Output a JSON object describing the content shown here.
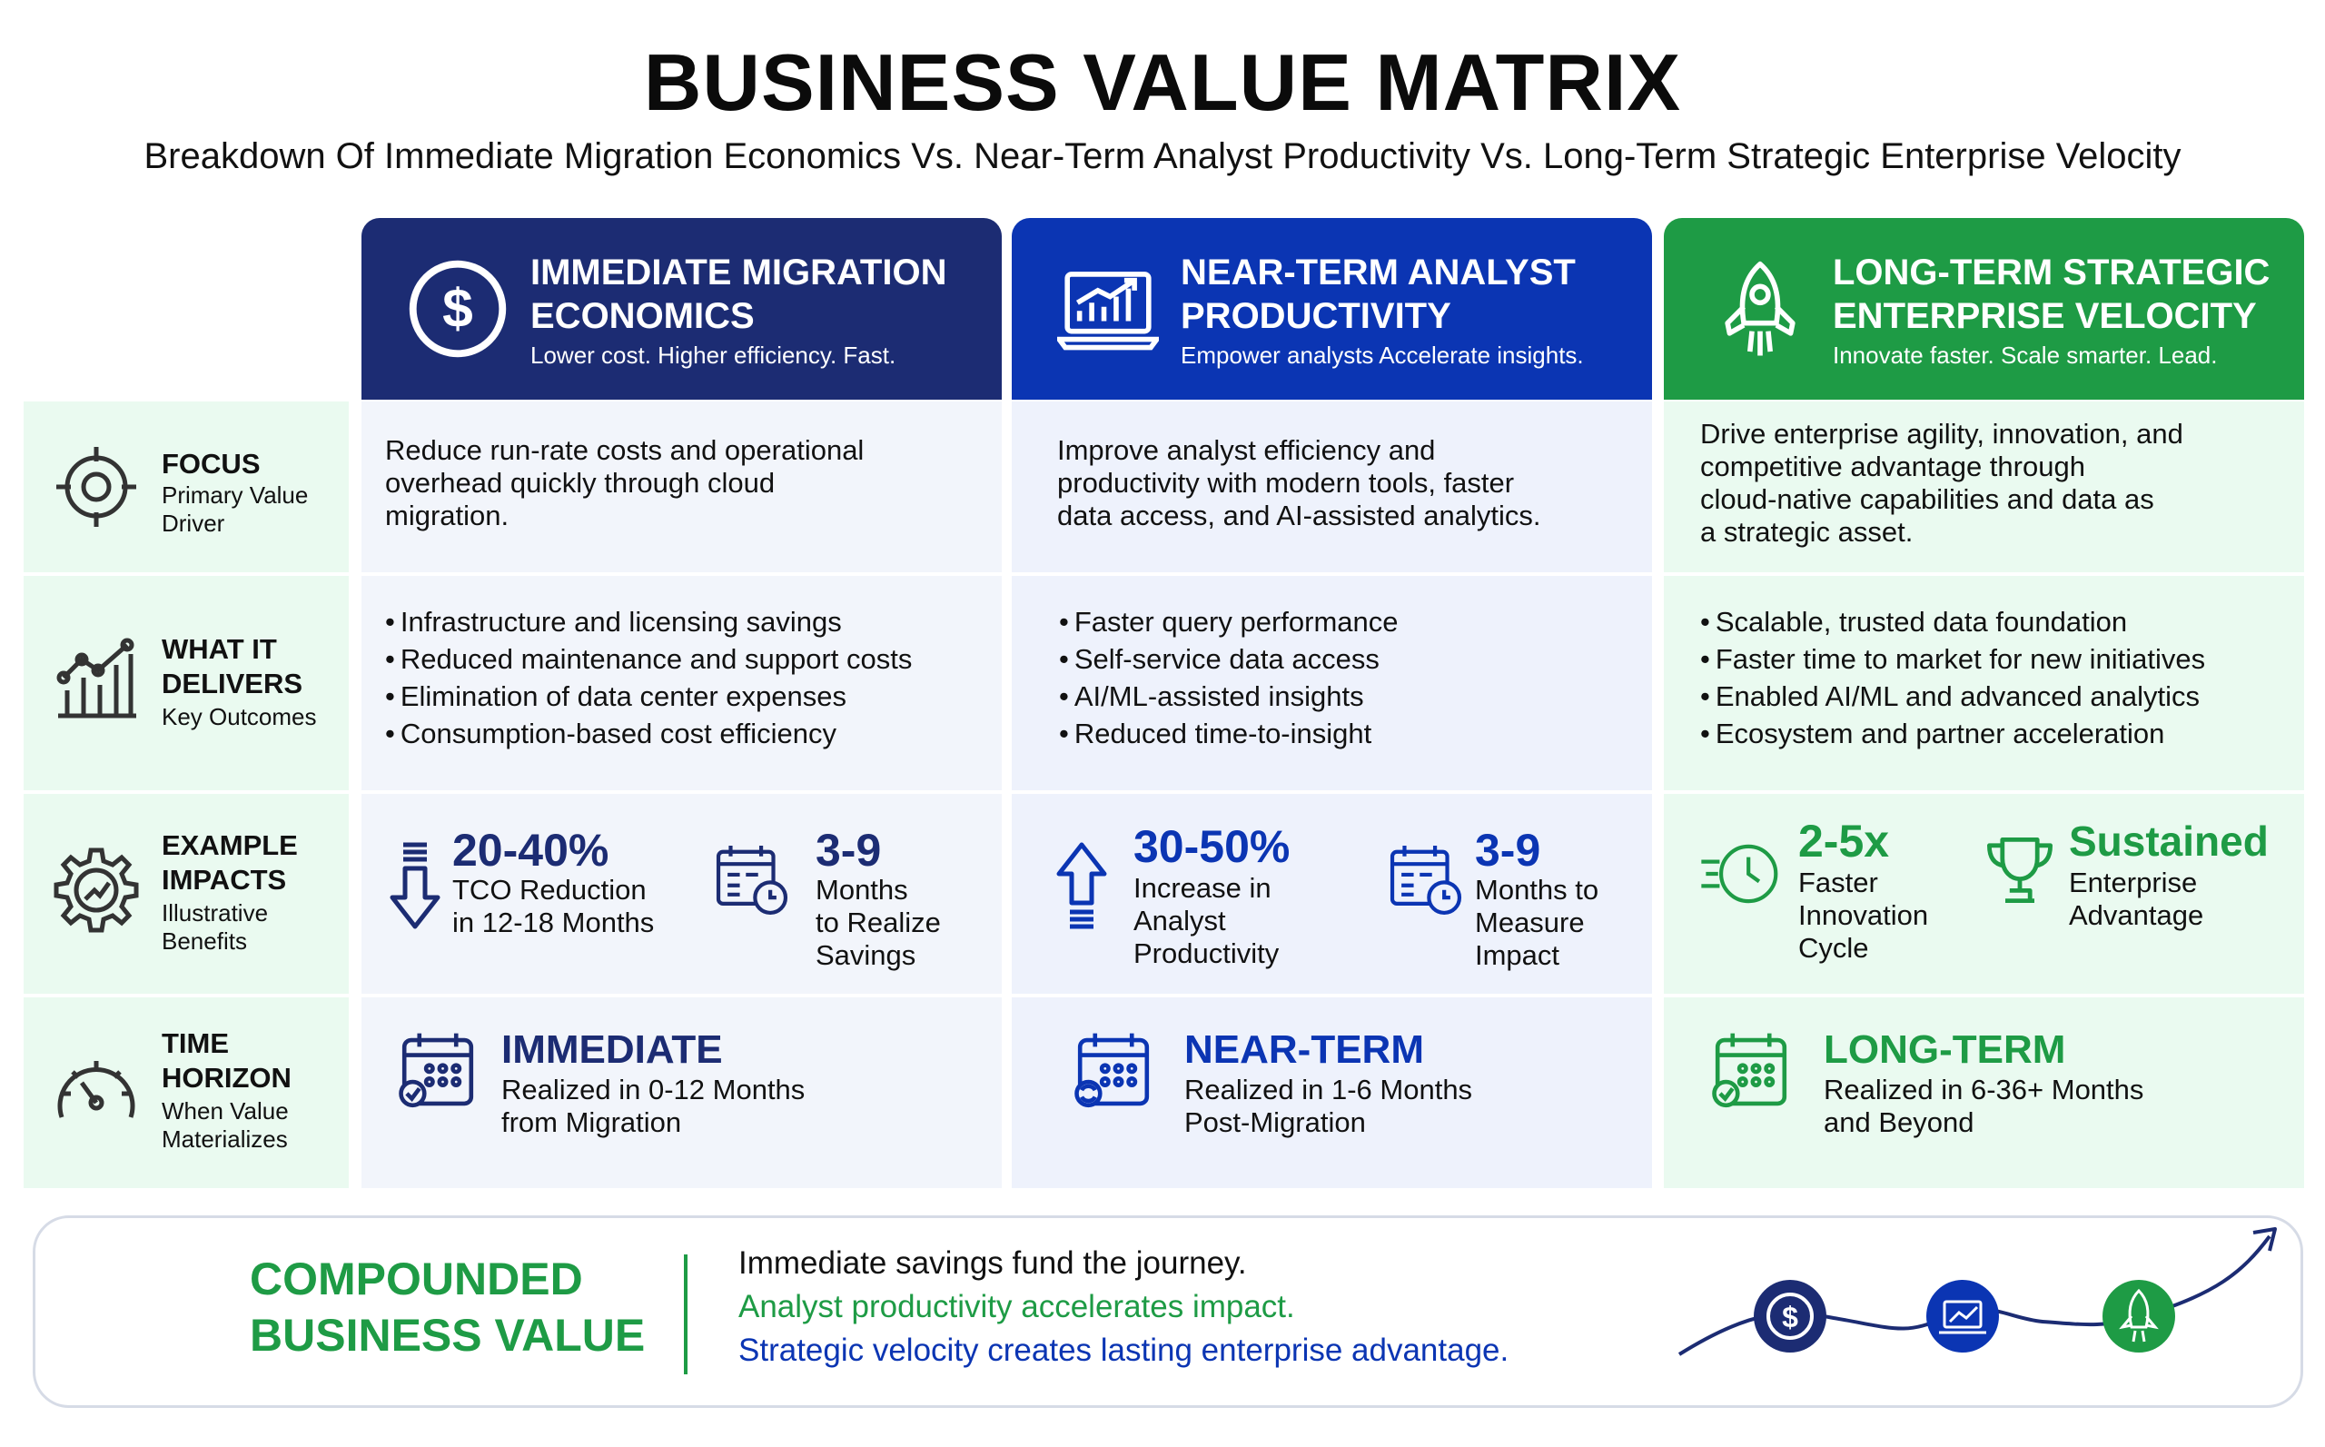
{
  "title": "BUSINESS VALUE MATRIX",
  "subtitle": "Breakdown Of Immediate Migration Economics Vs. Near-Term Analyst Productivity Vs. Long-Term Strategic Enterprise Velocity",
  "colors": {
    "navy": "#1c2c73",
    "blue": "#0b35b3",
    "green": "#1e9b45"
  },
  "columns": [
    {
      "title_line1": "IMMEDIATE MIGRATION",
      "title_line2": "ECONOMICS",
      "tagline": "Lower cost. Higher efficiency. Fast.",
      "icon": "dollar-icon"
    },
    {
      "title_line1": "NEAR-TERM ANALYST",
      "title_line2": "PRODUCTIVITY",
      "tagline": "Empower analysts Accelerate insights.",
      "icon": "laptop-chart-icon"
    },
    {
      "title_line1": "LONG-TERM STRATEGIC",
      "title_line2": "ENTERPRISE VELOCITY",
      "tagline": "Innovate faster. Scale smarter. Lead.",
      "icon": "rocket-icon"
    }
  ],
  "rows": [
    {
      "title_line1": "FOCUS",
      "title_line2": "",
      "sub_line1": "Primary Value",
      "sub_line2": "Driver",
      "icon": "target-icon"
    },
    {
      "title_line1": "WHAT IT",
      "title_line2": "DELIVERS",
      "sub_line1": "Key Outcomes",
      "sub_line2": "",
      "icon": "bar-chart-icon"
    },
    {
      "title_line1": "EXAMPLE",
      "title_line2": "IMPACTS",
      "sub_line1": "Illustrative",
      "sub_line2": "Benefits",
      "icon": "gear-chart-icon"
    },
    {
      "title_line1": "TIME",
      "title_line2": "HORIZON",
      "sub_line1": "When Value",
      "sub_line2": "Materializes",
      "icon": "gauge-icon"
    }
  ],
  "focus": [
    [
      "Reduce run-rate costs and operational",
      "overhead quickly through cloud",
      "migration."
    ],
    [
      "Improve analyst efficiency and",
      "productivity with modern tools, faster",
      "data access, and AI-assisted analytics."
    ],
    [
      "Drive enterprise agility, innovation, and",
      "competitive advantage through",
      "cloud-native capabilities and data as",
      "a strategic asset."
    ]
  ],
  "delivers": [
    [
      "Infrastructure and licensing savings",
      "Reduced maintenance and support costs",
      "Elimination of data center expenses",
      "Consumption-based cost efficiency"
    ],
    [
      "Faster query performance",
      "Self-service data access",
      "AI/ML-assisted insights",
      "Reduced time-to-insight"
    ],
    [
      "Scalable, trusted data foundation",
      "Faster time to market for new initiatives",
      "Enabled AI/ML and advanced analytics",
      "Ecosystem and partner acceleration"
    ]
  ],
  "impacts": [
    [
      {
        "value": "20-40%",
        "lines": [
          "TCO Reduction",
          "in 12-18 Months"
        ],
        "icon": "arrow-down-icon"
      },
      {
        "value": "3-9",
        "lines": [
          "Months",
          "to Realize",
          "Savings"
        ],
        "icon": "calendar-clock-icon"
      }
    ],
    [
      {
        "value": "30-50%",
        "lines": [
          "Increase in",
          "Analyst",
          "Productivity"
        ],
        "icon": "arrow-up-icon"
      },
      {
        "value": "3-9",
        "lines": [
          "Months to",
          "Measure",
          "Impact"
        ],
        "icon": "calendar-clock-icon"
      }
    ],
    [
      {
        "value": "2-5x",
        "lines": [
          "Faster",
          "Innovation",
          "Cycle"
        ],
        "icon": "clock-speed-icon"
      },
      {
        "value": "Sustained",
        "lines": [
          "Enterprise",
          "Advantage"
        ],
        "icon": "trophy-icon"
      }
    ]
  ],
  "horizon": [
    {
      "label": "IMMEDIATE",
      "lines": [
        "Realized in 0-12 Months",
        "from Migration"
      ],
      "icon": "calendar-check-icon"
    },
    {
      "label": "NEAR-TERM",
      "lines": [
        "Realized in 1-6 Months",
        "Post-Migration"
      ],
      "icon": "calendar-refresh-icon"
    },
    {
      "label": "LONG-TERM",
      "lines": [
        "Realized in 6-36+ Months",
        "and Beyond"
      ],
      "icon": "calendar-check-icon"
    }
  ],
  "footer": {
    "title_line1": "COMPOUNDED",
    "title_line2": "BUSINESS VALUE",
    "line1": "Immediate savings fund the journey.",
    "line2": "Analyst productivity accelerates impact.",
    "line3": "Strategic velocity creates lasting enterprise advantage.",
    "symbol": "$"
  }
}
